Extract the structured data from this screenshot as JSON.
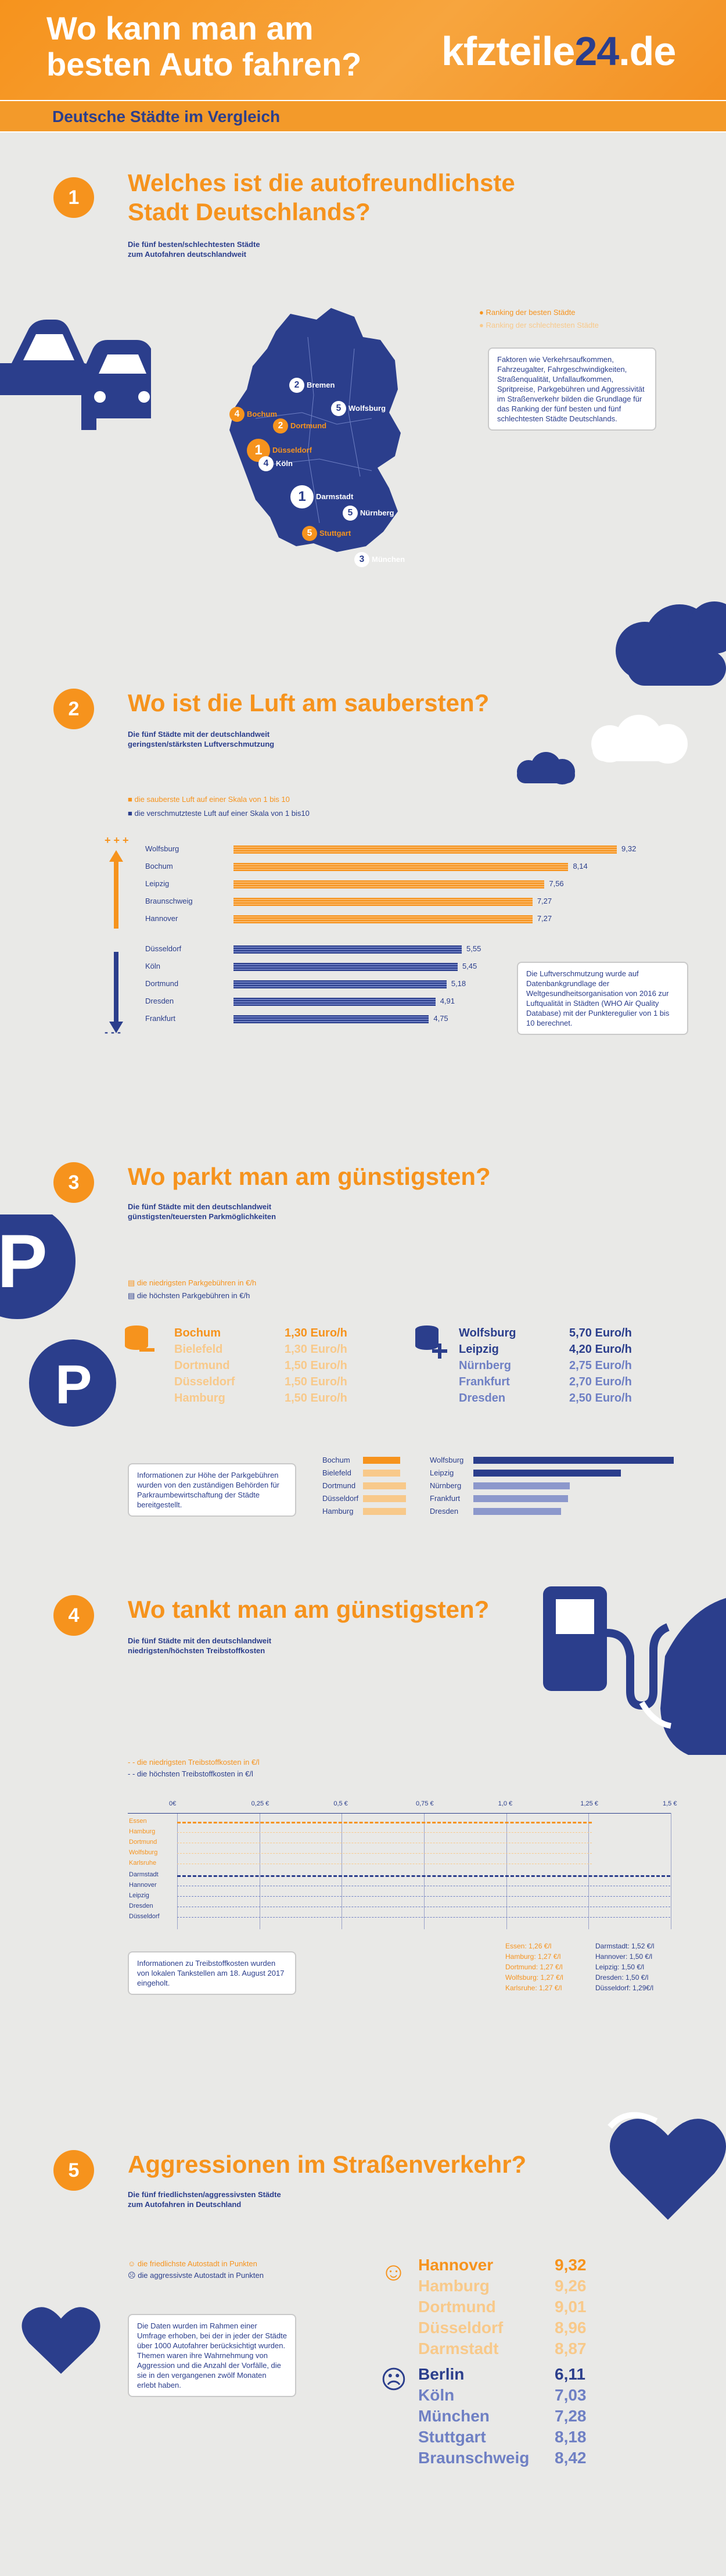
{
  "header": {
    "title_line1": "Wo kann man am",
    "title_line2": "besten Auto fahren?",
    "logo_a": "kfzteile",
    "logo_b": "24",
    "logo_c": ".de",
    "subtitle": "Deutsche Städte im Vergleich"
  },
  "s1": {
    "num": "1",
    "title1": "Welches ist die autofreundlichste",
    "title2": "Stadt Deutschlands?",
    "sub1": "Die fünf besten/schlechtesten Städte",
    "sub2": "zum Autofahren deutschlandweit",
    "legend_best": "Ranking der besten Städte",
    "legend_worst": "Ranking der schlechtesten Städte",
    "info": "Faktoren wie Verkehrsaufkommen, Fahrzeugalter, Fahrgeschwindigkeiten, Straßenqualität, Unfallaufkommen, Spritpreise, Parkgebühren und Aggressivität im Straßenverkehr bilden die Grundlage für das Ranking der fünf besten und fünf schlechtesten Städte Deutschlands.",
    "cities": [
      {
        "rank": "2",
        "name": "Bremen",
        "type": "worst"
      },
      {
        "rank": "5",
        "name": "Wolfsburg",
        "type": "worst"
      },
      {
        "rank": "4",
        "name": "Bochum",
        "type": "best"
      },
      {
        "rank": "2",
        "name": "Dortmund",
        "type": "best"
      },
      {
        "rank": "1",
        "name": "Düsseldorf",
        "type": "best"
      },
      {
        "rank": "4",
        "name": "Köln",
        "type": "worst"
      },
      {
        "rank": "1",
        "name": "Darmstadt",
        "type": "worst"
      },
      {
        "rank": "5",
        "name": "Nürnberg",
        "type": "worst"
      },
      {
        "rank": "3",
        "name": "München",
        "type": "worst"
      },
      {
        "rank": "5",
        "name": "Stuttgart",
        "type": "best"
      }
    ]
  },
  "s2": {
    "num": "2",
    "title": "Wo ist die Luft am saubersten?",
    "sub1": "Die fünf Städte mit der deutschlandweit",
    "sub2": "geringsten/stärksten Luftverschmutzung",
    "legend_clean": "die sauberste Luft auf einer Skala von 1 bis 10",
    "legend_dirty": "die verschmutzteste Luft auf einer Skala von 1 bis10",
    "clean": [
      {
        "city": "Wolfsburg",
        "value": 9.32,
        "label": "9,32"
      },
      {
        "city": "Bochum",
        "value": 8.14,
        "label": "8,14"
      },
      {
        "city": "Leipzig",
        "value": 7.56,
        "label": "7,56"
      },
      {
        "city": "Braunschweig",
        "value": 7.27,
        "label": "7,27"
      },
      {
        "city": "Hannover",
        "value": 7.27,
        "label": "7,27"
      }
    ],
    "dirty": [
      {
        "city": "Düsseldorf",
        "value": 5.55,
        "label": "5,55"
      },
      {
        "city": "Köln",
        "value": 5.45,
        "label": "5,45"
      },
      {
        "city": "Dortmund",
        "value": 5.18,
        "label": "5,18"
      },
      {
        "city": "Dresden",
        "value": 4.91,
        "label": "4,91"
      },
      {
        "city": "Frankfurt",
        "value": 4.75,
        "label": "4,75"
      }
    ],
    "info": "Die Luftverschmutzung wurde auf Datenbankgrundlage der Weltgesundheitsorganisation von 2016 zur Luftqualität in Städten (WHO Air Quality Database) mit der Punkteregulier von 1 bis 10 berechnet.",
    "arrows": "+ + +",
    "minus": "- - -"
  },
  "s3": {
    "num": "3",
    "title": "Wo parkt man am günstigsten?",
    "sub1": "Die fünf Städte mit den deutschlandweit",
    "sub2": "günstigsten/teuersten Parkmöglichkeiten",
    "legend_cheap": "die niedrigsten Parkgebühren in €/h",
    "legend_exp": "die höchsten Parkgebühren in €/h",
    "cheap": [
      {
        "city": "Bochum",
        "price": "1,30 Euro/h",
        "value": 1.3
      },
      {
        "city": "Bielefeld",
        "price": "1,30 Euro/h",
        "value": 1.3
      },
      {
        "city": "Dortmund",
        "price": "1,50 Euro/h",
        "value": 1.5
      },
      {
        "city": "Düsseldorf",
        "price": "1,50 Euro/h",
        "value": 1.5
      },
      {
        "city": "Hamburg",
        "price": "1,50 Euro/h",
        "value": 1.5
      }
    ],
    "exp": [
      {
        "city": "Wolfsburg",
        "price": "5,70 Euro/h",
        "value": 5.7
      },
      {
        "city": "Leipzig",
        "price": "4,20 Euro/h",
        "value": 4.2
      },
      {
        "city": "Nürnberg",
        "price": "2,75 Euro/h",
        "value": 2.75
      },
      {
        "city": "Frankfurt",
        "price": "2,70 Euro/h",
        "value": 2.7
      },
      {
        "city": "Dresden",
        "price": "2,50 Euro/h",
        "value": 2.5
      }
    ],
    "info": "Informationen zur Höhe der Parkgebühren wurden von den zuständigen Behörden für Parkraumbewirtschaftung der Städte bereitgestellt."
  },
  "s4": {
    "num": "4",
    "title": "Wo tankt man am günstigsten?",
    "sub1": "Die fünf Städte mit den deutschlandweit",
    "sub2": "niedrigsten/höchsten Treibstoffkosten",
    "legend_low": "die niedrigsten Treibstoffkosten in €/l",
    "legend_high": "die höchsten Treibstoffkosten in €/l",
    "ticks": [
      "0€",
      "0,25 €",
      "0,5 €",
      "0,75 €",
      "1,0 €",
      "1,25 €",
      "1,5 €"
    ],
    "low_cities": [
      "Essen",
      "Hamburg",
      "Dortmund",
      "Wolfsburg",
      "Karlsruhe"
    ],
    "high_cities": [
      "Darmstadt",
      "Hannover",
      "Leipzig",
      "Dresden",
      "Düsseldorf"
    ],
    "low_prices": [
      "Essen: 1,26 €/l",
      "Hamburg: 1,27 €/l",
      "Dortmund: 1,27 €/l",
      "Wolfsburg: 1,27 €/l",
      "Karlsruhe: 1,27 €/l"
    ],
    "high_prices": [
      "Darmstadt: 1,52 €/l",
      "Hannover: 1,50 €/l",
      "Leipzig: 1,50 €/l",
      "Dresden: 1,50 €/l",
      "Düsseldorf: 1,29€/l"
    ],
    "info": "Informationen zu Treibstoffkosten wurden von lokalen Tankstellen am 18. August 2017 eingeholt."
  },
  "s5": {
    "num": "5",
    "title": "Aggressionen im Straßenverkehr?",
    "sub1": "Die fünf friedlichsten/aggressivsten Städte",
    "sub2": "zum Autofahren in Deutschland",
    "legend_calm": "die friedlichste Autostadt in Punkten",
    "legend_agg": "die aggressivste Autostadt in Punkten",
    "info": "Die Daten wurden im Rahmen einer Umfrage erhoben, bei der in jeder der Städte über 1000 Autofahrer berücksichtigt wurden. Themen waren ihre Wahrnehmung von Aggression und die Anzahl der Vorfälle, die sie in den vergangenen zwölf Monaten erlebt haben.",
    "calm": [
      {
        "city": "Hannover",
        "score": "9,32"
      },
      {
        "city": "Hamburg",
        "score": "9,26"
      },
      {
        "city": "Dortmund",
        "score": "9,01"
      },
      {
        "city": "Düsseldorf",
        "score": "8,96"
      },
      {
        "city": "Darmstadt",
        "score": "8,87"
      }
    ],
    "agg": [
      {
        "city": "Berlin",
        "score": "6,11"
      },
      {
        "city": "Köln",
        "score": "7,03"
      },
      {
        "city": "München",
        "score": "7,28"
      },
      {
        "city": "Stuttgart",
        "score": "8,18"
      },
      {
        "city": "Braunschweig",
        "score": "8,42"
      }
    ]
  }
}
